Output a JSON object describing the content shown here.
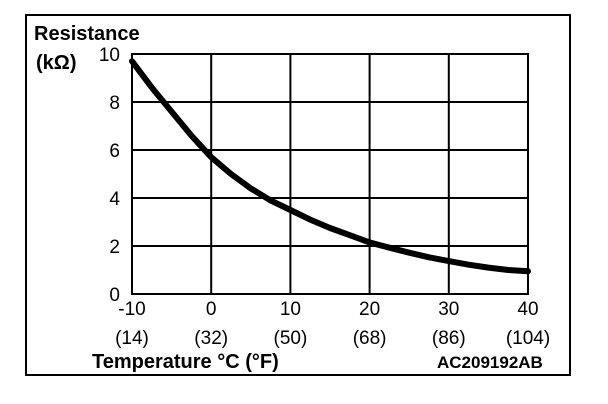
{
  "chart_data": {
    "type": "line",
    "title": "",
    "ylabel_line1": "Resistance",
    "ylabel_line2": "(kΩ)",
    "xlabel": "Temperature °C (°F)",
    "figure_code": "AC209192AB",
    "xlim": [
      -10,
      40
    ],
    "ylim": [
      0,
      10
    ],
    "x_ticks": [
      {
        "value": -10,
        "label": "-10",
        "sub": "(14)"
      },
      {
        "value": 0,
        "label": "0",
        "sub": "(32)"
      },
      {
        "value": 10,
        "label": "10",
        "sub": "(50)"
      },
      {
        "value": 20,
        "label": "20",
        "sub": "(68)"
      },
      {
        "value": 30,
        "label": "30",
        "sub": "(86)"
      },
      {
        "value": 40,
        "label": "40",
        "sub": "(104)"
      }
    ],
    "y_ticks": [
      {
        "value": 0,
        "label": "0"
      },
      {
        "value": 2,
        "label": "2"
      },
      {
        "value": 4,
        "label": "4"
      },
      {
        "value": 6,
        "label": "6"
      },
      {
        "value": 8,
        "label": "8"
      },
      {
        "value": 10,
        "label": "10"
      }
    ],
    "grid": true,
    "series": [
      {
        "x": [
          -10,
          -7.5,
          -5,
          -2.5,
          0,
          2.5,
          5,
          7.5,
          10,
          12.5,
          15,
          17.5,
          20,
          22.5,
          25,
          27.5,
          30,
          32.5,
          35,
          37.5,
          40
        ],
        "y": [
          9.7,
          8.6,
          7.6,
          6.6,
          5.7,
          5.0,
          4.4,
          3.9,
          3.5,
          3.1,
          2.75,
          2.45,
          2.15,
          1.93,
          1.72,
          1.53,
          1.37,
          1.22,
          1.1,
          1.0,
          0.95
        ]
      }
    ]
  }
}
